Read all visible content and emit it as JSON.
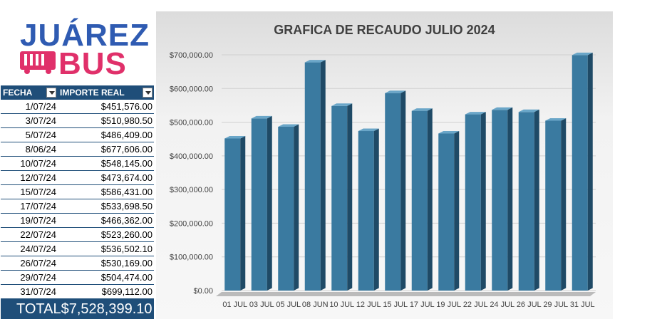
{
  "logo": {
    "line1": "JUÁREZ",
    "line2": "BUS"
  },
  "table": {
    "headers": [
      "FECHA",
      "IMPORTE REAL"
    ],
    "rows": [
      [
        "1/07/24",
        "$451,576.00"
      ],
      [
        "3/07/24",
        "$510,980.50"
      ],
      [
        "5/07/24",
        "$486,409.00"
      ],
      [
        "8/06/24",
        "$677,606.00"
      ],
      [
        "10/07/24",
        "$548,145.00"
      ],
      [
        "12/07/24",
        "$473,674.00"
      ],
      [
        "15/07/24",
        "$586,431.00"
      ],
      [
        "17/07/24",
        "$533,698.50"
      ],
      [
        "19/07/24",
        "$466,362.00"
      ],
      [
        "22/07/24",
        "$523,260.00"
      ],
      [
        "24/07/24",
        "$536,502.10"
      ],
      [
        "26/07/24",
        "$530,169.00"
      ],
      [
        "29/07/24",
        "$504,474.00"
      ],
      [
        "31/07/24",
        "$699,112.00"
      ]
    ],
    "total_label": "TOTAL",
    "total_value": "$7,528,399.10"
  },
  "chart_data": {
    "type": "bar",
    "title": "GRAFICA DE RECAUDO  JULIO 2024",
    "categories": [
      "01 JUL",
      "03 JUL",
      "05 JUL",
      "08 JUN",
      "10 JUL",
      "12 JUL",
      "15 JUL",
      "17 JUL",
      "19 JUL",
      "22 JUL",
      "24 JUL",
      "26 JUL",
      "29 JUL",
      "31 JUL"
    ],
    "values": [
      451576.0,
      510980.5,
      486409.0,
      677606.0,
      548145.0,
      473674.0,
      586431.0,
      533698.5,
      466362.0,
      523260.0,
      536502.1,
      530169.0,
      504474.0,
      699112.0
    ],
    "ylim": [
      0,
      700000
    ],
    "yticks": [
      "$0.00",
      "$100,000.00",
      "$200,000.00",
      "$300,000.00",
      "$400,000.00",
      "$500,000.00",
      "$600,000.00",
      "$700,000.00"
    ],
    "xlabel": "",
    "ylabel": "",
    "grid": true,
    "colors": {
      "front": "#3a7aa0",
      "side": "#1f4a66",
      "top": "#6aa6c8"
    }
  },
  "colors": {
    "header": "#1f4e79",
    "logo_blue": "#2f5bb2",
    "logo_pink": "#e0306a"
  }
}
